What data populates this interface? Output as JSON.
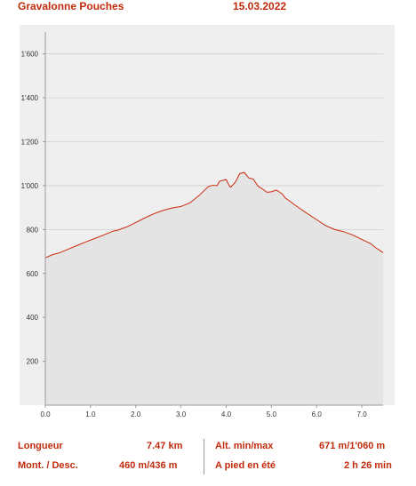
{
  "header": {
    "title": "Gravalonne Pouches",
    "date": "15.03.2022"
  },
  "colors": {
    "accent": "#c22a0c",
    "line": "#cc2a0c",
    "fill": "#e4e4e4",
    "panel": "#efefef",
    "grid": "#cfcfcf",
    "label": "#c22a0c"
  },
  "chart_data": {
    "type": "area",
    "xlabel": "",
    "ylabel": "",
    "xlim": [
      0,
      7.47
    ],
    "ylim": [
      0,
      1700
    ],
    "xticks": [
      "0.0",
      "1.0",
      "2.0",
      "3.0",
      "4.0",
      "5.0",
      "6.0",
      "7.0"
    ],
    "yticks": [
      "200",
      "400",
      "600",
      "800",
      "1'000",
      "1'200",
      "1'400",
      "1'600"
    ],
    "grid": true,
    "series": [
      {
        "x": [
          0.0,
          0.15,
          0.3,
          0.5,
          0.7,
          0.9,
          1.1,
          1.3,
          1.5,
          1.6,
          1.8,
          2.0,
          2.2,
          2.4,
          2.6,
          2.8,
          3.0,
          3.2,
          3.4,
          3.6,
          3.7,
          3.8,
          3.85,
          4.0,
          4.07,
          4.1,
          4.2,
          4.3,
          4.4,
          4.5,
          4.6,
          4.7,
          4.8,
          4.9,
          5.0,
          5.1,
          5.15,
          5.25,
          5.3,
          5.4,
          5.6,
          5.8,
          6.0,
          6.2,
          6.4,
          6.6,
          6.8,
          7.0,
          7.2,
          7.3,
          7.47
        ],
        "y": [
          671,
          685,
          693,
          710,
          727,
          744,
          760,
          776,
          793,
          797,
          812,
          832,
          853,
          872,
          887,
          898,
          905,
          922,
          955,
          995,
          1002,
          1000,
          1020,
          1028,
          998,
          993,
          1015,
          1055,
          1060,
          1035,
          1030,
          998,
          985,
          970,
          972,
          980,
          975,
          960,
          945,
          930,
          900,
          872,
          845,
          818,
          800,
          790,
          775,
          755,
          735,
          718,
          695
        ]
      }
    ]
  },
  "stats": {
    "length_label": "Longueur",
    "length_value": "7.47 km",
    "altminmax_label": "Alt. min/max",
    "altminmax_value": "671 m/1'060 m",
    "updown_label": "Mont. / Desc.",
    "updown_value": "460 m/436 m",
    "walktime_label": "A pied en été",
    "walktime_value": "2 h 26 min"
  }
}
